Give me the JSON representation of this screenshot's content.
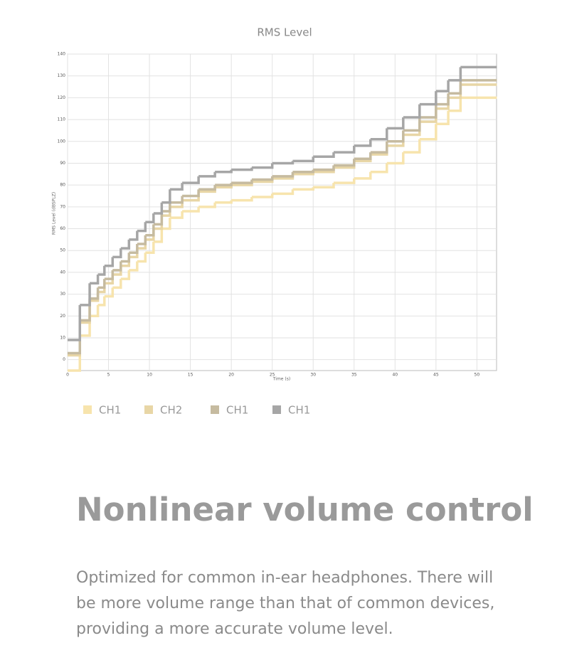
{
  "chart_data": {
    "type": "line",
    "step": true,
    "title": "RMS Level",
    "x_label": "Time (s)",
    "y_label": "RMS Level (dBSPLZ)",
    "x": [
      0,
      1.5,
      2.7,
      3.7,
      4.5,
      5.5,
      6.5,
      7.5,
      8.5,
      9.5,
      10.5,
      11.5,
      12.5,
      14,
      16,
      18,
      20,
      22.5,
      25,
      27.5,
      30,
      32.5,
      35,
      37,
      39,
      41,
      43,
      45,
      46.5,
      48,
      52.4
    ],
    "series": [
      {
        "name": "CH1",
        "color": "#f7e4ad",
        "values": [
          -5,
          11,
          20,
          25,
          29,
          33,
          37,
          41,
          45,
          49,
          54,
          60,
          65,
          68,
          70,
          72,
          73,
          74.5,
          76,
          78,
          79,
          81,
          83,
          86,
          90,
          95,
          101,
          108,
          114,
          120,
          120
        ]
      },
      {
        "name": "CH2",
        "color": "#e8d6a6",
        "values": [
          2,
          17,
          27,
          31,
          35,
          39,
          43,
          47,
          51,
          55,
          60,
          66,
          70,
          73,
          77,
          79,
          80,
          81.5,
          83,
          85,
          86,
          88,
          91,
          94,
          98,
          103,
          109,
          115,
          120,
          126,
          126
        ]
      },
      {
        "name": "CH1",
        "color": "#c6bba0",
        "values": [
          3,
          18,
          28,
          33,
          37,
          41,
          45,
          49,
          53,
          57,
          62,
          68,
          72,
          75,
          78,
          80,
          81,
          82.5,
          84,
          86,
          87,
          89,
          92,
          95,
          100,
          105,
          111,
          117,
          122,
          128,
          128
        ]
      },
      {
        "name": "CH1",
        "color": "#a6a6a6",
        "values": [
          9,
          25,
          35,
          39,
          43,
          47,
          51,
          55,
          59,
          63,
          67,
          72,
          78,
          81,
          84,
          86,
          87,
          88,
          90,
          91,
          93,
          95,
          98,
          101,
          106,
          111,
          117,
          123,
          128,
          134,
          134
        ]
      }
    ],
    "xlim": [
      0,
      52.4
    ],
    "xticks": [
      0,
      5,
      10,
      15,
      20,
      25,
      30,
      35,
      40,
      45,
      50
    ],
    "ylim": [
      -5,
      140
    ],
    "yticks": [
      0,
      10,
      20,
      30,
      40,
      50,
      60,
      70,
      80,
      90,
      100,
      110,
      120,
      130,
      140
    ],
    "grid": true,
    "legend": "bottom-left"
  },
  "heading": "Nonlinear volume control",
  "body": "Optimized for common in-ear headphones. There will be more volume range than that of common devices, providing a more accurate volume level."
}
